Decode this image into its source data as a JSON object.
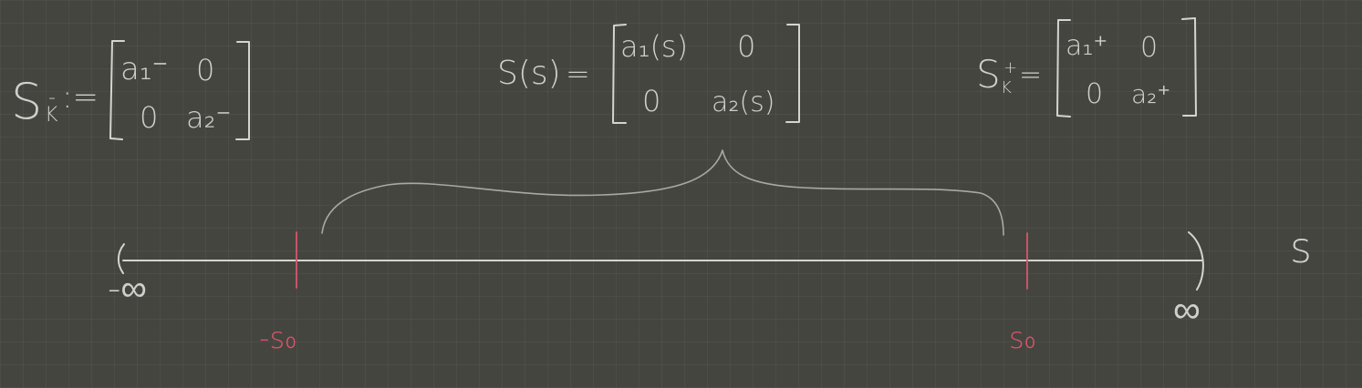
{
  "matrix_left": {
    "lhs": "S",
    "lhs_sub": "K",
    "lhs_sup": "-",
    "assign": ":=",
    "cells": [
      "a₁⁻",
      "0",
      "0",
      "a₂⁻"
    ]
  },
  "matrix_middle": {
    "lhs": "S(s)",
    "equals": "=",
    "cells": [
      "a₁(s)",
      "0",
      "0",
      "a₂(s)"
    ]
  },
  "matrix_right": {
    "lhs": "S",
    "lhs_sub": "K",
    "lhs_sup": "+",
    "equals": "=",
    "cells": [
      "a₁⁺",
      "0",
      "0",
      "a₂⁺"
    ]
  },
  "number_line": {
    "axis_label": "s",
    "left_end": "-∞",
    "right_end": "∞",
    "left_mark": "-s₀",
    "right_mark": "s₀"
  },
  "colors": {
    "background": "#454540",
    "chalk": "#d4d4d0",
    "accent": "#d8556a"
  }
}
